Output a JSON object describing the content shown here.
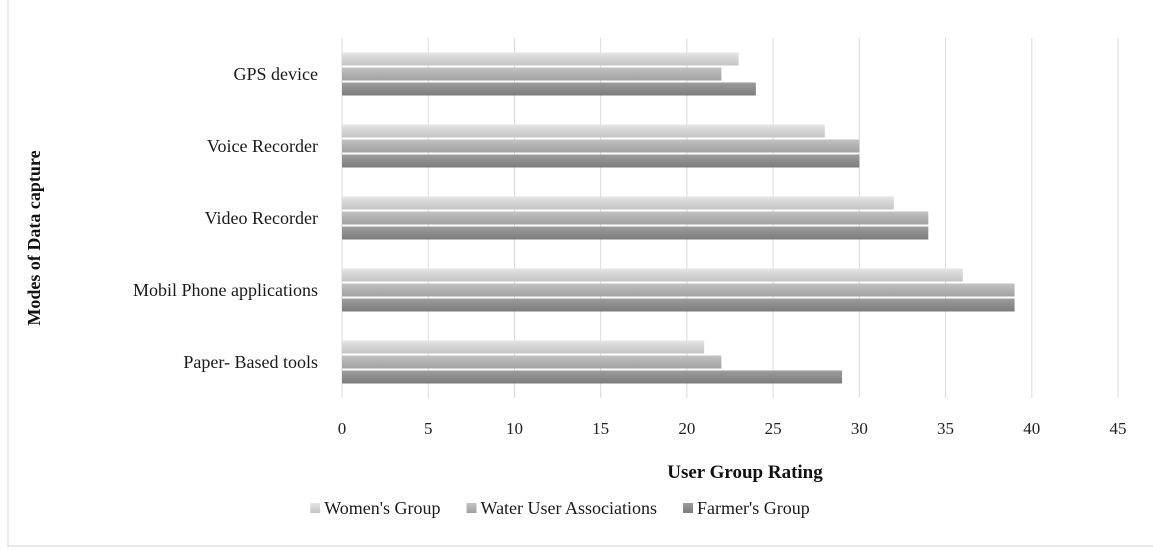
{
  "chart_data": {
    "type": "bar",
    "orientation": "horizontal",
    "categories": [
      "Paper- Based tools",
      "Mobil Phone applications",
      "Video Recorder",
      "Voice Recorder",
      "GPS device"
    ],
    "series": [
      {
        "name": "Women's Group",
        "values": [
          21,
          36,
          32,
          28,
          23
        ],
        "color": "#d3d3d3"
      },
      {
        "name": "Water User Associations",
        "values": [
          22,
          39,
          34,
          30,
          22
        ],
        "color": "#b0b0b0"
      },
      {
        "name": "Farmer's Group",
        "values": [
          29,
          39,
          34,
          30,
          24
        ],
        "color": "#8c8c8c"
      }
    ],
    "xlabel": "User Group Rating",
    "ylabel": "Modes of Data capture",
    "xlim": [
      0,
      45
    ],
    "xticks": [
      0,
      5,
      10,
      15,
      20,
      25,
      30,
      35,
      40,
      45
    ],
    "grid": "vertical",
    "legend_position": "bottom"
  }
}
